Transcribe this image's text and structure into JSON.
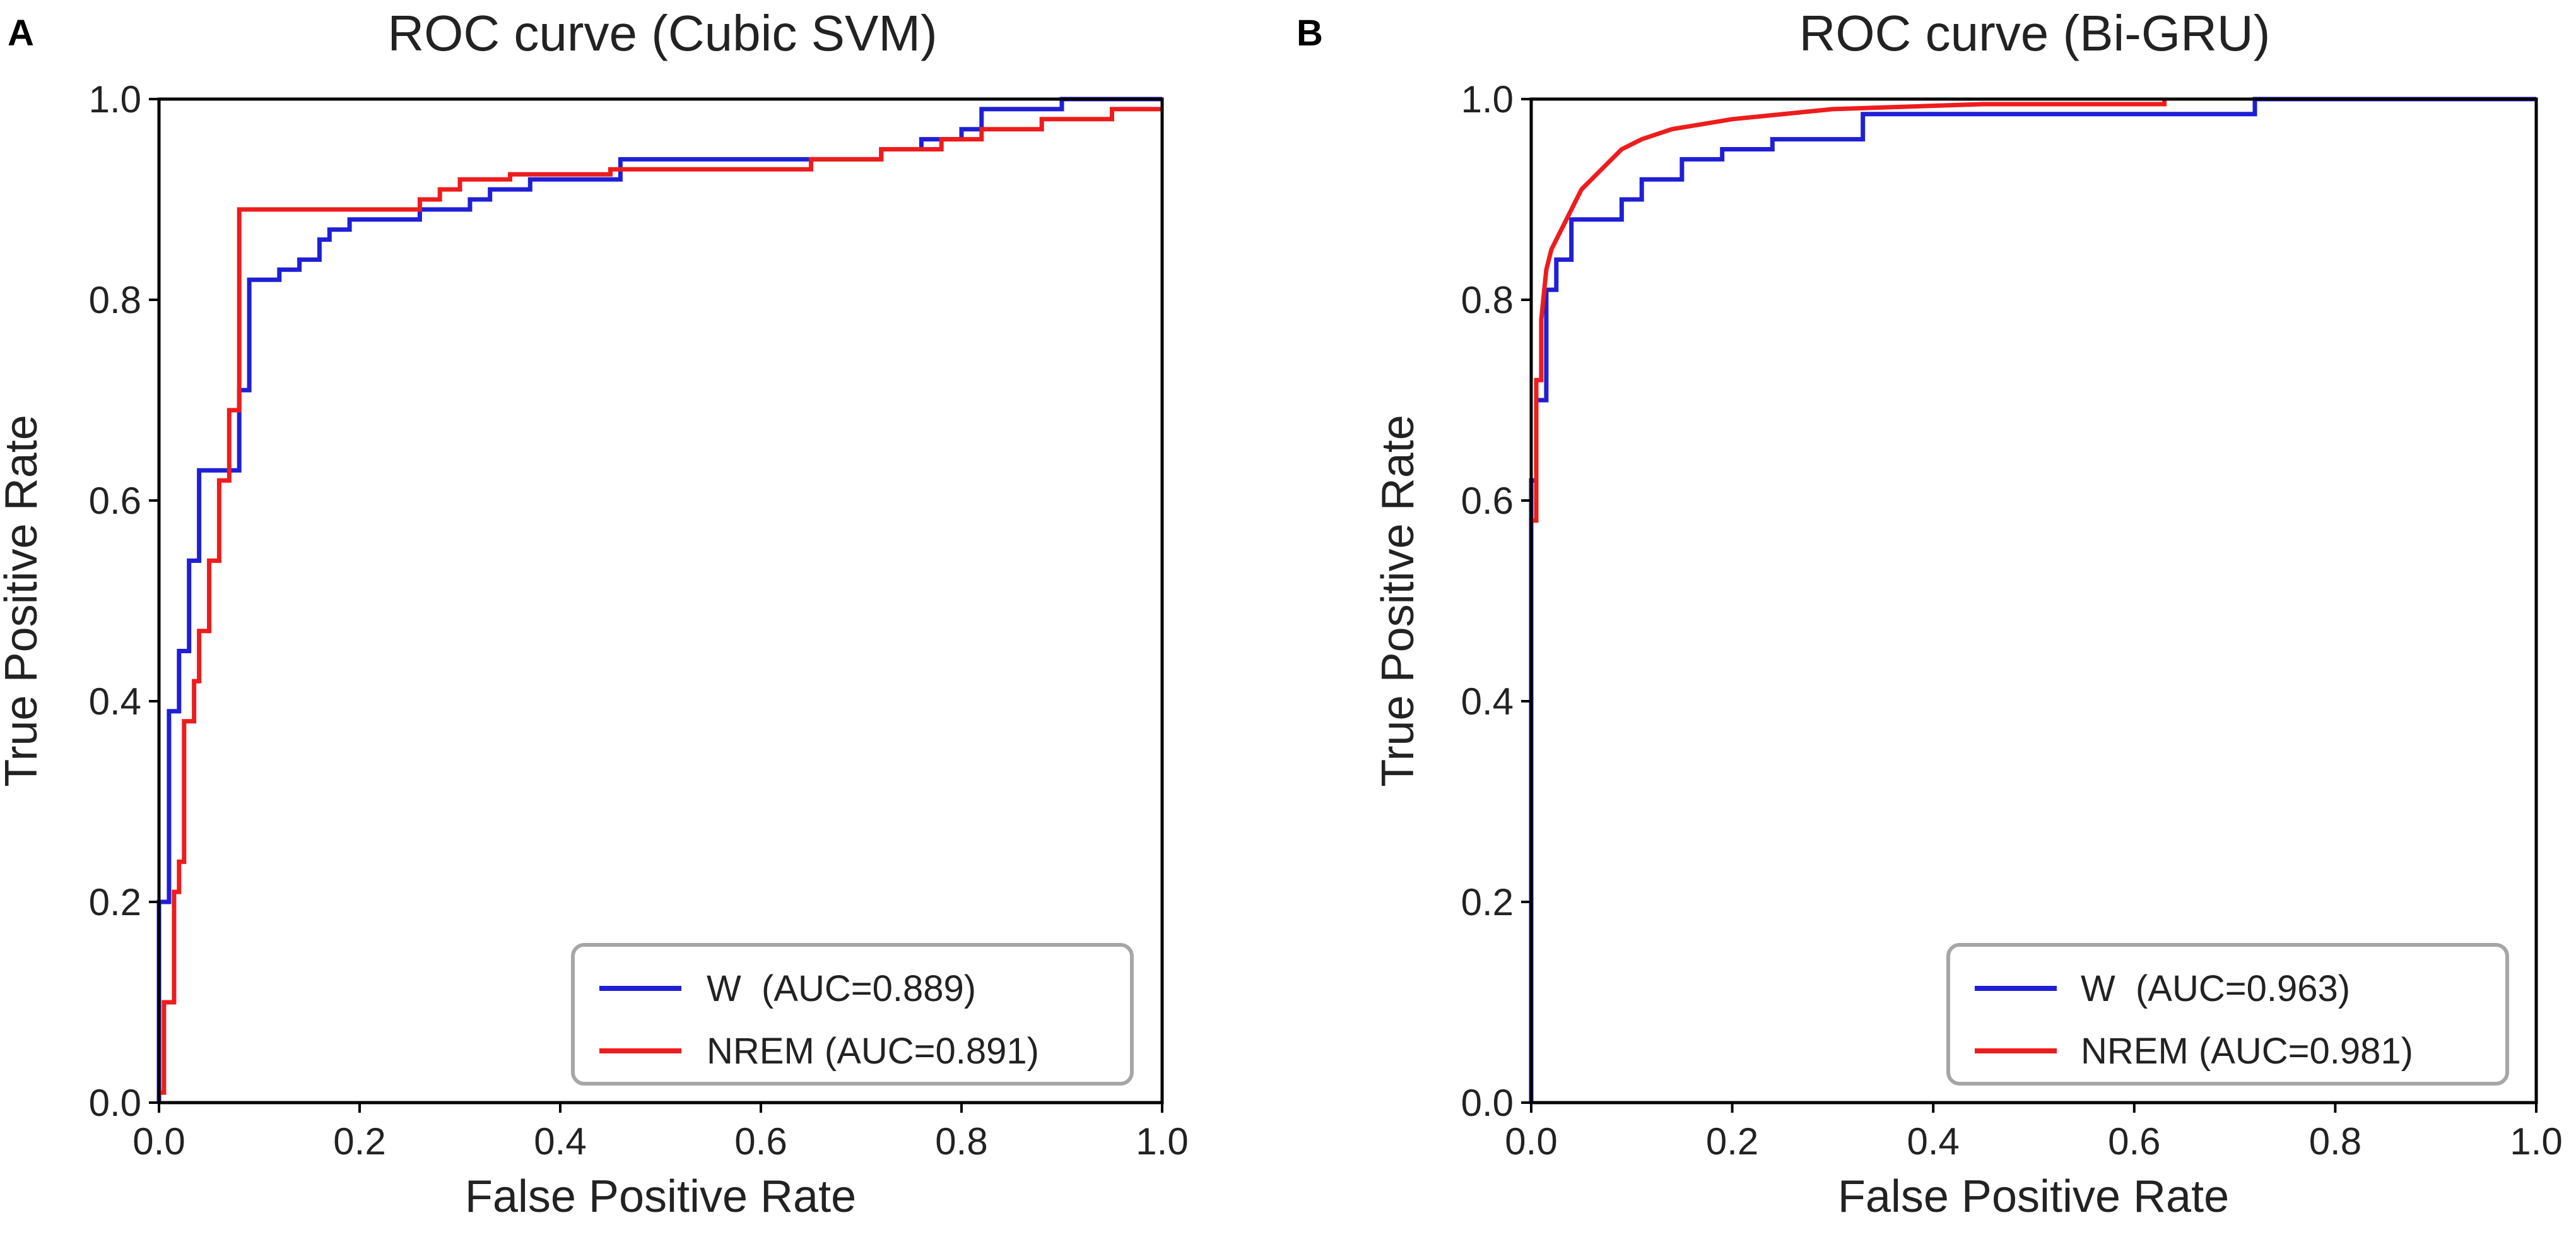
{
  "chart_data": [
    {
      "type": "line",
      "panel": "A",
      "title": "ROC curve (Cubic SVM)",
      "xlabel": "False Positive Rate",
      "ylabel": "True Positive Rate",
      "xlim": [
        0,
        1
      ],
      "ylim": [
        0,
        1
      ],
      "xticks": [
        "0.0",
        "0.2",
        "0.4",
        "0.6",
        "0.8",
        "1.0"
      ],
      "yticks": [
        "0.0",
        "0.2",
        "0.4",
        "0.6",
        "0.8",
        "1.0"
      ],
      "legend_position": "bottom-right",
      "series": [
        {
          "name": "W",
          "legend_label": "W  (AUC=0.889)",
          "color": "#1f1fd6",
          "x": [
            0,
            0,
            0.01,
            0.01,
            0.02,
            0.02,
            0.03,
            0.03,
            0.04,
            0.04,
            0.05,
            0.05,
            0.06,
            0.06,
            0.08,
            0.08,
            0.09,
            0.09,
            0.1,
            0.1,
            0.12,
            0.12,
            0.14,
            0.14,
            0.16,
            0.16,
            0.17,
            0.17,
            0.19,
            0.19,
            0.21,
            0.21,
            0.26,
            0.26,
            0.31,
            0.31,
            0.33,
            0.33,
            0.37,
            0.37,
            0.46,
            0.46,
            0.72,
            0.72,
            0.76,
            0.76,
            0.8,
            0.8,
            0.82,
            0.82,
            0.85,
            0.85,
            0.9,
            0.9,
            1.0
          ],
          "y": [
            0,
            0.2,
            0.2,
            0.39,
            0.39,
            0.45,
            0.45,
            0.54,
            0.54,
            0.63,
            0.63,
            0.63,
            0.63,
            0.63,
            0.63,
            0.71,
            0.71,
            0.82,
            0.82,
            0.82,
            0.82,
            0.83,
            0.83,
            0.84,
            0.84,
            0.86,
            0.86,
            0.87,
            0.87,
            0.88,
            0.88,
            0.88,
            0.88,
            0.89,
            0.89,
            0.9,
            0.9,
            0.91,
            0.91,
            0.92,
            0.92,
            0.94,
            0.94,
            0.95,
            0.95,
            0.96,
            0.96,
            0.97,
            0.97,
            0.99,
            0.99,
            0.99,
            0.99,
            1.0,
            1.0
          ]
        },
        {
          "name": "NREM",
          "legend_label": "NREM (AUC=0.891)",
          "color": "#ee1c1c",
          "x": [
            0,
            0.005,
            0.005,
            0.015,
            0.015,
            0.02,
            0.02,
            0.025,
            0.025,
            0.035,
            0.035,
            0.04,
            0.04,
            0.05,
            0.05,
            0.06,
            0.06,
            0.07,
            0.07,
            0.08,
            0.08,
            0.26,
            0.26,
            0.28,
            0.28,
            0.3,
            0.3,
            0.35,
            0.35,
            0.45,
            0.45,
            0.65,
            0.65,
            0.72,
            0.72,
            0.78,
            0.78,
            0.82,
            0.82,
            0.88,
            0.88,
            0.95,
            0.95,
            1.0
          ],
          "y": [
            0.01,
            0.01,
            0.1,
            0.1,
            0.21,
            0.21,
            0.24,
            0.24,
            0.38,
            0.38,
            0.42,
            0.42,
            0.47,
            0.47,
            0.54,
            0.54,
            0.62,
            0.62,
            0.69,
            0.69,
            0.89,
            0.89,
            0.9,
            0.9,
            0.91,
            0.91,
            0.92,
            0.92,
            0.925,
            0.925,
            0.93,
            0.93,
            0.94,
            0.94,
            0.95,
            0.95,
            0.96,
            0.96,
            0.97,
            0.97,
            0.98,
            0.98,
            0.99,
            0.99
          ]
        }
      ]
    },
    {
      "type": "line",
      "panel": "B",
      "title": "ROC curve (Bi-GRU)",
      "xlabel": "False Positive Rate",
      "ylabel": "True Positive Rate",
      "xlim": [
        0,
        1
      ],
      "ylim": [
        0,
        1
      ],
      "xticks": [
        "0.0",
        "0.2",
        "0.4",
        "0.6",
        "0.8",
        "1.0"
      ],
      "yticks": [
        "0.0",
        "0.2",
        "0.4",
        "0.6",
        "0.8",
        "1.0"
      ],
      "legend_position": "bottom-right",
      "series": [
        {
          "name": "W",
          "legend_label": "W  (AUC=0.963)",
          "color": "#1f1fd6",
          "x": [
            0,
            0,
            0.005,
            0.005,
            0.015,
            0.015,
            0.025,
            0.025,
            0.04,
            0.04,
            0.055,
            0.055,
            0.09,
            0.09,
            0.11,
            0.11,
            0.15,
            0.15,
            0.19,
            0.19,
            0.24,
            0.24,
            0.33,
            0.33,
            0.72,
            0.72,
            1.0
          ],
          "y": [
            0,
            0.62,
            0.62,
            0.7,
            0.7,
            0.81,
            0.81,
            0.84,
            0.84,
            0.88,
            0.88,
            0.88,
            0.88,
            0.9,
            0.9,
            0.92,
            0.92,
            0.94,
            0.94,
            0.95,
            0.95,
            0.96,
            0.96,
            0.985,
            0.985,
            1.0,
            1.0
          ]
        },
        {
          "name": "NREM",
          "legend_label": "NREM (AUC=0.981)",
          "color": "#ee1c1c",
          "x": [
            0,
            0.005,
            0.005,
            0.01,
            0.01,
            0.015,
            0.02,
            0.025,
            0.035,
            0.05,
            0.07,
            0.09,
            0.11,
            0.14,
            0.2,
            0.3,
            0.45,
            0.63,
            0.63
          ],
          "y": [
            0.58,
            0.58,
            0.72,
            0.72,
            0.78,
            0.83,
            0.85,
            0.86,
            0.88,
            0.91,
            0.93,
            0.95,
            0.96,
            0.97,
            0.98,
            0.99,
            0.995,
            0.995,
            1.0
          ]
        }
      ]
    }
  ]
}
